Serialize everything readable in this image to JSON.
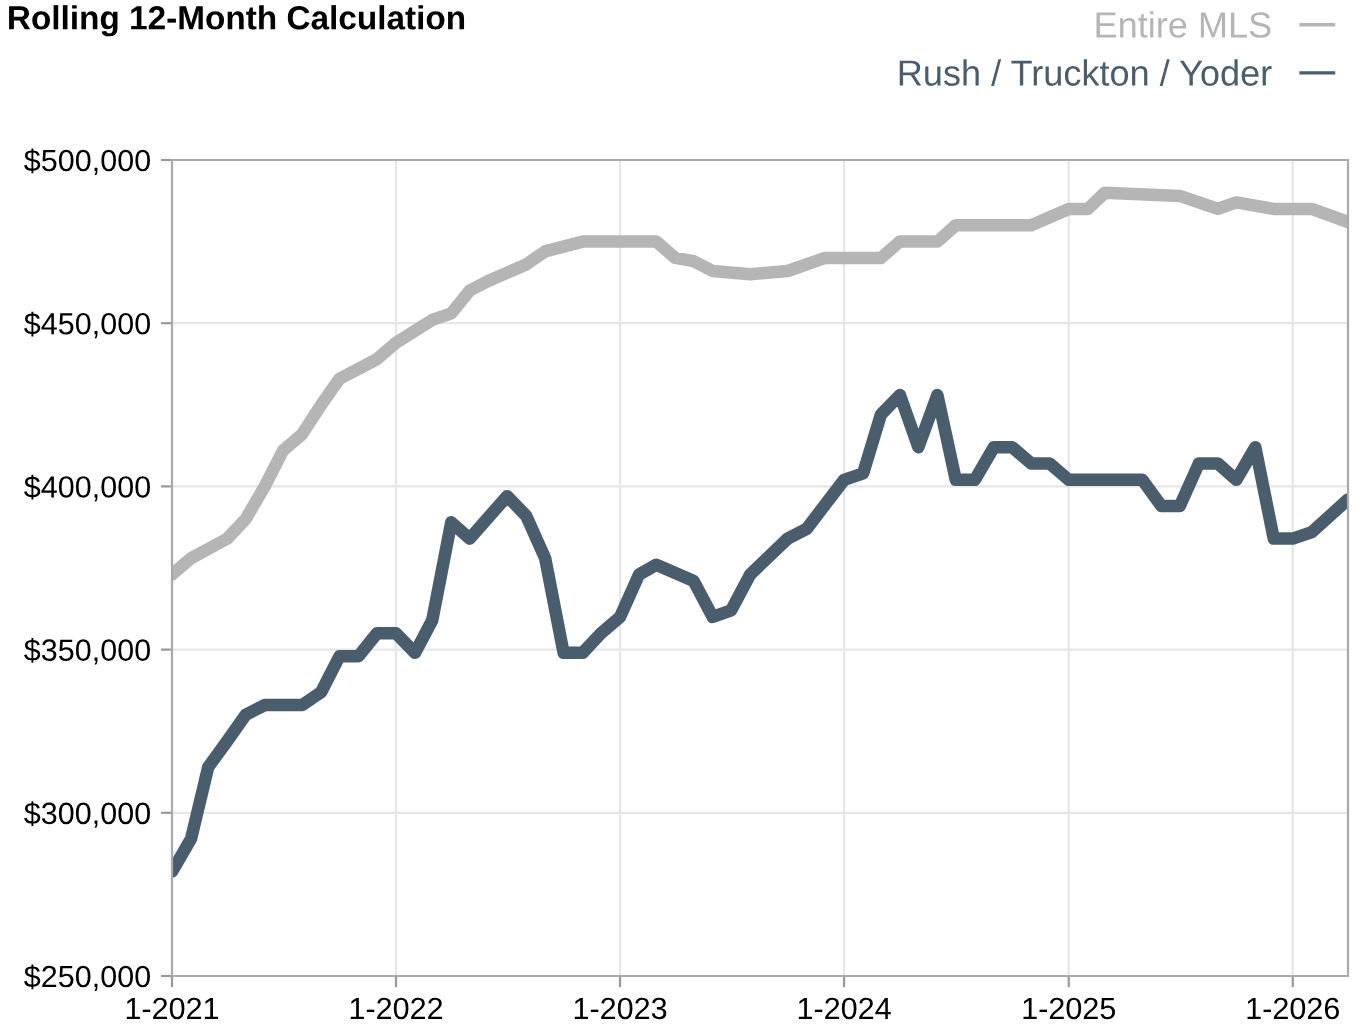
{
  "chart_data": {
    "type": "line",
    "title": "Rolling 12-Month Calculation",
    "series": [
      {
        "name": "Entire MLS",
        "color": "#b5b5b5",
        "x": [
          "2021-01",
          "2021-02",
          "2021-04",
          "2021-05",
          "2021-06",
          "2021-07",
          "2021-08",
          "2021-09",
          "2021-10",
          "2021-12",
          "2022-01",
          "2022-03",
          "2022-04",
          "2022-05",
          "2022-06",
          "2022-08",
          "2022-09",
          "2022-11",
          "2023-03",
          "2023-04",
          "2023-05",
          "2023-06",
          "2023-08",
          "2023-10",
          "2023-12",
          "2024-03",
          "2024-04",
          "2024-06",
          "2024-07",
          "2024-11",
          "2025-01",
          "2025-02",
          "2025-03",
          "2025-07",
          "2025-09",
          "2025-10",
          "2025-12",
          "2026-02",
          "2026-04"
        ],
        "values": [
          373000,
          378000,
          384000,
          390000,
          400000,
          411000,
          416000,
          425000,
          433000,
          439000,
          444000,
          451000,
          453000,
          460000,
          463000,
          468000,
          472000,
          475000,
          475000,
          470000,
          469000,
          466000,
          465000,
          466000,
          470000,
          470000,
          475000,
          475000,
          480000,
          480000,
          485000,
          485000,
          490000,
          489000,
          485000,
          487000,
          485000,
          485000,
          481000
        ]
      },
      {
        "name": "Rush / Truckton / Yoder",
        "color": "#4a5d6d",
        "x": [
          "2021-01",
          "2021-02",
          "2021-03",
          "2021-04",
          "2021-05",
          "2021-06",
          "2021-08",
          "2021-09",
          "2021-10",
          "2021-11",
          "2021-12",
          "2022-01",
          "2022-02",
          "2022-03",
          "2022-04",
          "2022-05",
          "2022-07",
          "2022-08",
          "2022-09",
          "2022-10",
          "2022-11",
          "2022-12",
          "2023-01",
          "2023-02",
          "2023-03",
          "2023-05",
          "2023-06",
          "2023-07",
          "2023-08",
          "2023-10",
          "2023-11",
          "2024-01",
          "2024-02",
          "2024-03",
          "2024-04",
          "2024-05",
          "2024-06",
          "2024-07",
          "2024-08",
          "2024-09",
          "2024-10",
          "2024-11",
          "2024-12",
          "2025-01",
          "2025-05",
          "2025-06",
          "2025-07",
          "2025-08",
          "2025-09",
          "2025-10",
          "2025-11",
          "2025-12",
          "2026-01",
          "2026-02",
          "2026-04"
        ],
        "values": [
          282000,
          292000,
          314000,
          322000,
          330000,
          333000,
          333000,
          337000,
          348000,
          348000,
          355000,
          355000,
          349000,
          359000,
          389000,
          384000,
          397000,
          391000,
          378000,
          349000,
          349000,
          355000,
          360000,
          373000,
          376000,
          371000,
          360000,
          362000,
          373000,
          384000,
          387000,
          402000,
          404000,
          422000,
          428000,
          412000,
          428000,
          402000,
          402000,
          412000,
          412000,
          407000,
          407000,
          402000,
          402000,
          394000,
          394000,
          407000,
          407000,
          402000,
          412000,
          384000,
          384000,
          386000,
          396000
        ]
      }
    ],
    "xlim": [
      "2021-01",
      "2026-04"
    ],
    "xticks": [
      {
        "value": "2021-01",
        "label": "1-2021"
      },
      {
        "value": "2022-01",
        "label": "1-2022"
      },
      {
        "value": "2023-01",
        "label": "1-2023"
      },
      {
        "value": "2024-01",
        "label": "1-2024"
      },
      {
        "value": "2025-01",
        "label": "1-2025"
      },
      {
        "value": "2026-01",
        "label": "1-2026"
      }
    ],
    "ylim": [
      250000,
      500000
    ],
    "yticks": [
      {
        "value": 250000,
        "label": "$250,000"
      },
      {
        "value": 300000,
        "label": "$300,000"
      },
      {
        "value": 350000,
        "label": "$350,000"
      },
      {
        "value": 400000,
        "label": "$400,000"
      },
      {
        "value": 450000,
        "label": "$450,000"
      },
      {
        "value": 500000,
        "label": "$500,000"
      }
    ],
    "grid": true,
    "legend": "top right",
    "line_style": "solid",
    "marker": "none"
  }
}
